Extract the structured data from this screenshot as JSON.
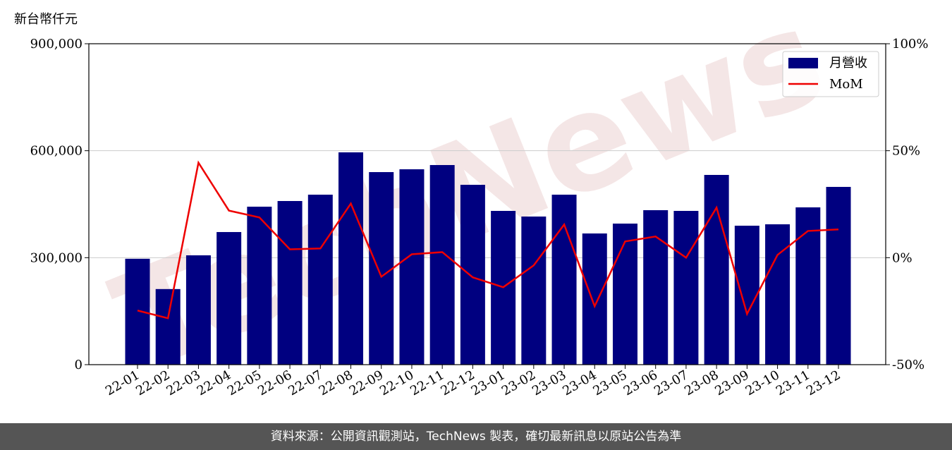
{
  "chart_data": {
    "type": "bar-line",
    "ylabel": "新台幣仟元",
    "watermark": "TechNews",
    "categories": [
      "22-01",
      "22-02",
      "22-03",
      "22-04",
      "22-05",
      "22-06",
      "22-07",
      "22-08",
      "22-09",
      "22-10",
      "22-11",
      "22-12",
      "23-01",
      "23-02",
      "23-03",
      "23-04",
      "23-05",
      "23-06",
      "23-07",
      "23-08",
      "23-09",
      "23-10",
      "23-11",
      "23-12"
    ],
    "series": [
      {
        "name": "月營收",
        "type": "bar",
        "color": "#000080",
        "values": [
          297000,
          212000,
          306600,
          371900,
          443000,
          458900,
          476700,
          595400,
          540000,
          547900,
          559800,
          504400,
          431200,
          415400,
          476700,
          367900,
          395600,
          433200,
          431200,
          532100,
          389700,
          393600,
          441100,
          498500
        ]
      },
      {
        "name": "MoM",
        "type": "line",
        "axis": "y2",
        "color": "#ee0000",
        "values": [
          -24.7,
          -28.3,
          44.4,
          22.0,
          18.8,
          3.9,
          4.3,
          25.3,
          -8.9,
          1.6,
          2.6,
          -9.2,
          -13.8,
          -3.6,
          15.5,
          -22.7,
          7.6,
          9.9,
          0,
          23.4,
          -26.3,
          1.3,
          12.5,
          13.2
        ]
      }
    ],
    "ylim": [
      0,
      900000
    ],
    "yticks": [
      0,
      {
        "value": 300000,
        "label": "300,000"
      },
      {
        "value": 600000,
        "label": "600,000"
      },
      {
        "value": 900000,
        "label": "900,000"
      }
    ],
    "y2lim": [
      -50,
      100
    ],
    "y2ticks": [
      {
        "value": -50,
        "label": "-50%"
      },
      {
        "value": 0,
        "label": "0%"
      },
      {
        "value": 50,
        "label": "50%"
      },
      {
        "value": 100,
        "label": "100%"
      }
    ],
    "grid": true,
    "legend": "upper right"
  },
  "footer": "資料來源：公開資訊觀測站，TechNews 製表，確切最新訊息以原站公告為準"
}
